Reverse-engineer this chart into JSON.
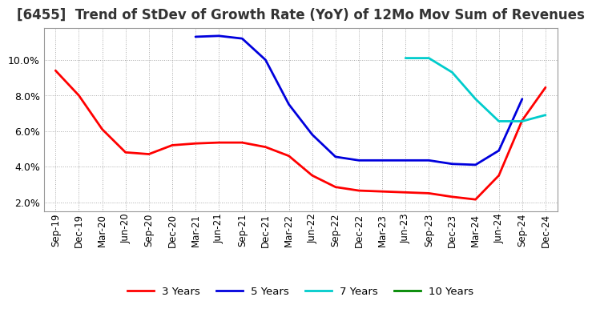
{
  "title": "[6455]  Trend of StDev of Growth Rate (YoY) of 12Mo Mov Sum of Revenues",
  "title_fontsize": 12,
  "background_color": "#ffffff",
  "grid_color": "#aaaaaa",
  "ylim": [
    1.5,
    11.8
  ],
  "yticks": [
    2.0,
    4.0,
    6.0,
    8.0,
    10.0
  ],
  "x_labels": [
    "Sep-19",
    "Dec-19",
    "Mar-20",
    "Jun-20",
    "Sep-20",
    "Dec-20",
    "Mar-21",
    "Jun-21",
    "Sep-21",
    "Dec-21",
    "Mar-22",
    "Jun-22",
    "Sep-22",
    "Dec-22",
    "Mar-23",
    "Jun-23",
    "Sep-23",
    "Dec-23",
    "Mar-24",
    "Jun-24",
    "Sep-24",
    "Dec-24"
  ],
  "series": {
    "3 Years": {
      "color": "#ff0000",
      "values": [
        9.4,
        8.0,
        6.1,
        4.8,
        4.7,
        5.2,
        5.3,
        5.35,
        5.35,
        5.1,
        4.6,
        3.5,
        2.85,
        2.65,
        2.6,
        2.55,
        2.5,
        2.3,
        2.15,
        3.5,
        6.6,
        8.45
      ]
    },
    "5 Years": {
      "color": "#0000dd",
      "values": [
        null,
        null,
        null,
        null,
        null,
        null,
        11.3,
        11.35,
        11.2,
        10.0,
        7.5,
        5.8,
        4.55,
        4.35,
        4.35,
        4.35,
        4.35,
        4.15,
        4.1,
        4.9,
        7.8,
        null
      ]
    },
    "7 Years": {
      "color": "#00cccc",
      "values": [
        null,
        null,
        null,
        null,
        null,
        null,
        null,
        null,
        null,
        null,
        null,
        null,
        null,
        null,
        null,
        10.1,
        10.1,
        9.3,
        7.8,
        6.55,
        6.55,
        6.9
      ]
    },
    "10 Years": {
      "color": "#008800",
      "values": [
        null,
        null,
        null,
        null,
        null,
        null,
        null,
        null,
        null,
        null,
        null,
        null,
        null,
        null,
        null,
        null,
        null,
        null,
        null,
        null,
        null,
        null
      ]
    }
  },
  "legend_labels": [
    "3 Years",
    "5 Years",
    "7 Years",
    "10 Years"
  ],
  "legend_colors": [
    "#ff0000",
    "#0000dd",
    "#00cccc",
    "#008800"
  ]
}
